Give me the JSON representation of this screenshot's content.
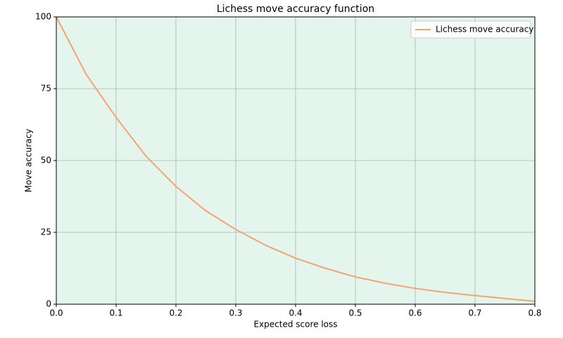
{
  "chart_data": {
    "type": "line",
    "title": "Lichess move accuracy function",
    "x_label": "Expected score loss",
    "y_label": "Move accuracy",
    "x": [
      0,
      0.05,
      0.1,
      0.15,
      0.2,
      0.25,
      0.3,
      0.35,
      0.4,
      0.45,
      0.5,
      0.55,
      0.6,
      0.65,
      0.7,
      0.75,
      0.8
    ],
    "series": [
      {
        "name": "Lichess move accuracy",
        "color": "#f4a46e",
        "values": [
          100,
          80,
          65,
          51.5,
          41,
          32.5,
          26,
          20.5,
          16,
          12.5,
          9.5,
          7.3,
          5.5,
          4.1,
          3,
          2,
          1
        ]
      }
    ],
    "xlim": [
      0,
      0.8
    ],
    "ylim": [
      0,
      100
    ],
    "xticks": [
      {
        "value": 0,
        "label": "0.0"
      },
      0.1,
      0.2,
      0.3,
      0.4,
      0.5,
      0.6,
      0.7,
      0.8
    ],
    "yticks": [
      0,
      25,
      50,
      75,
      100
    ],
    "grid": true,
    "legend": "upper right",
    "background": "#e4f5ee"
  }
}
